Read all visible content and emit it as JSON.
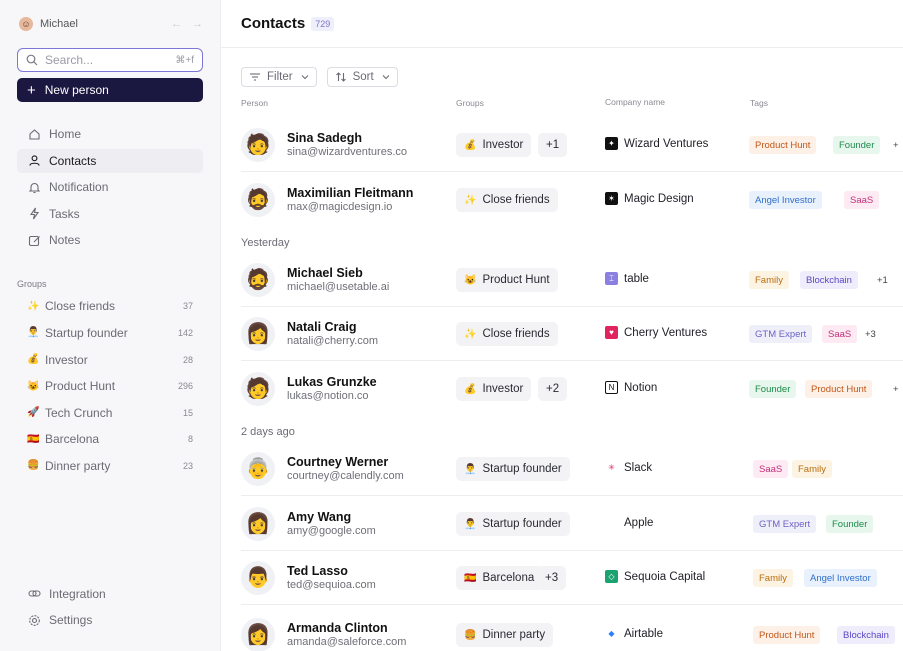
{
  "user": {
    "name": "Michael",
    "back_arrow": "←",
    "fwd_arrow": "→"
  },
  "search": {
    "placeholder": "Search...",
    "shortcut": "⌘+f"
  },
  "new_person": {
    "label": "New person",
    "plus": "+"
  },
  "nav": [
    {
      "label": "Home",
      "icon": "home-icon"
    },
    {
      "label": "Contacts",
      "icon": "user-icon",
      "active": true
    },
    {
      "label": "Notification",
      "icon": "bell-icon"
    },
    {
      "label": "Tasks",
      "icon": "lightning-icon"
    },
    {
      "label": "Notes",
      "icon": "edit-icon"
    }
  ],
  "groups_heading": "Groups",
  "groups": [
    {
      "emoji": "✨",
      "label": "Close friends",
      "count": "37"
    },
    {
      "emoji": "👨‍💼",
      "label": "Startup founder",
      "count": "142"
    },
    {
      "emoji": "💰",
      "label": "Investor",
      "count": "28"
    },
    {
      "emoji": "😺",
      "label": "Product Hunt",
      "count": "296"
    },
    {
      "emoji": "🚀",
      "label": "Tech Crunch",
      "count": "15"
    },
    {
      "emoji": "🇪🇸",
      "label": "Barcelona",
      "count": "8"
    },
    {
      "emoji": "🍔",
      "label": "Dinner party",
      "count": "23"
    }
  ],
  "bottom_nav": [
    {
      "label": "Integration",
      "icon": "link-icon"
    },
    {
      "label": "Settings",
      "icon": "gear-icon"
    }
  ],
  "header": {
    "title": "Contacts",
    "count": "729"
  },
  "toolbar": {
    "filter": "Filter",
    "sort": "Sort"
  },
  "columns": {
    "person": "Person",
    "groups": "Groups",
    "company": "Company name",
    "tags": "Tags"
  },
  "sections": {
    "yesterday": "Yesterday",
    "two_days": "2 days ago"
  },
  "contacts": [
    {
      "name": "Sina Sadegh",
      "email": "sina@wizardventures.co",
      "group": {
        "emoji": "💰",
        "label": "Investor"
      },
      "extra": "+1",
      "company": "Wizard Ventures",
      "tags": [
        "Product Hunt",
        "Founder",
        "+"
      ]
    },
    {
      "name": "Maximilian Fleitmann",
      "email": "max@magicdesign.io",
      "group": {
        "emoji": "✨",
        "label": "Close friends"
      },
      "extra": "",
      "company": "Magic Design",
      "tags": [
        "Angel Investor",
        "SaaS"
      ]
    },
    {
      "name": "Michael Sieb",
      "email": "michael@usetable.ai",
      "group": {
        "emoji": "😺",
        "label": "Product Hunt"
      },
      "extra": "",
      "company": "table",
      "tags": [
        "Family",
        "Blockchain",
        "+1"
      ]
    },
    {
      "name": "Natali Craig",
      "email": "natali@cherry.com",
      "group": {
        "emoji": "✨",
        "label": "Close friends"
      },
      "extra": "",
      "company": "Cherry Ventures",
      "tags": [
        "GTM Expert",
        "SaaS",
        "+3"
      ]
    },
    {
      "name": "Lukas Grunzke",
      "email": "lukas@notion.co",
      "group": {
        "emoji": "💰",
        "label": "Investor"
      },
      "extra": "+2",
      "company": "Notion",
      "tags": [
        "Founder",
        "Product Hunt",
        "+"
      ]
    },
    {
      "name": "Courtney Werner",
      "email": "courtney@calendly.com",
      "group": {
        "emoji": "👨‍💼",
        "label": "Startup founder"
      },
      "extra": "",
      "company": "Slack",
      "tags": [
        "SaaS",
        "Family"
      ]
    },
    {
      "name": "Amy Wang",
      "email": "amy@google.com",
      "group": {
        "emoji": "👨‍💼",
        "label": "Startup founder"
      },
      "extra": "",
      "company": "Apple",
      "tags": [
        "GTM Expert",
        "Founder"
      ]
    },
    {
      "name": "Ted Lasso",
      "email": "ted@sequioa.com",
      "group": {
        "emoji": "🇪🇸",
        "label": "Barcelona"
      },
      "extra": "+3",
      "company": "Sequoia Capital",
      "tags": [
        "Family",
        "Angel Investor",
        "+"
      ]
    },
    {
      "name": "Armanda Clinton",
      "email": "amanda@saleforce.com",
      "group": {
        "emoji": "🍔",
        "label": "Dinner party"
      },
      "extra": "",
      "company": "Airtable",
      "tags": [
        "Product Hunt",
        "Blockchain"
      ]
    }
  ],
  "tag_colors": {
    "Product Hunt": {
      "bg": "#fdf0e6",
      "fg": "#c2571a"
    },
    "Founder": {
      "bg": "#e8f7ee",
      "fg": "#1d8a4a"
    },
    "Angel Investor": {
      "bg": "#e9f1fc",
      "fg": "#2f6fcc"
    },
    "SaaS": {
      "bg": "#fdeaf3",
      "fg": "#c2307a"
    },
    "Family": {
      "bg": "#fdf3e3",
      "fg": "#b86e12"
    },
    "Blockchain": {
      "bg": "#efedfc",
      "fg": "#5a48c4"
    },
    "GTM Expert": {
      "bg": "#efeffa",
      "fg": "#6b63c4"
    },
    "more": {
      "bg": "transparent",
      "fg": "#444"
    }
  }
}
